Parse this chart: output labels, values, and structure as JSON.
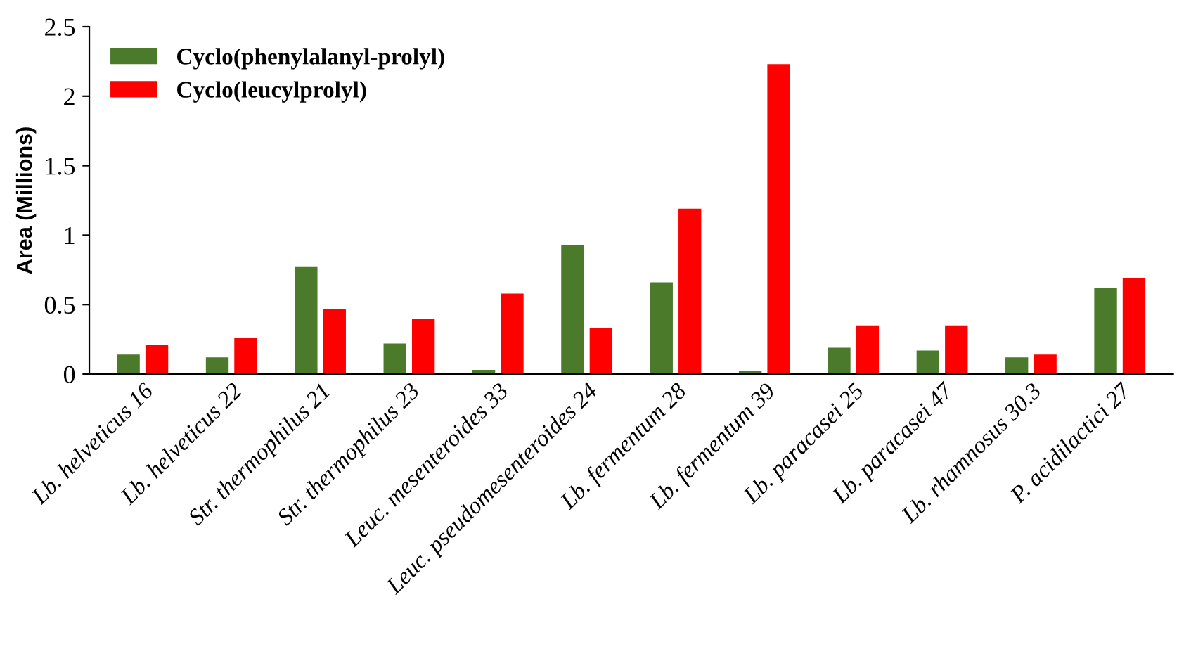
{
  "chart_data": {
    "type": "bar",
    "ylabel": "Area (Millions)",
    "categories": [
      "Lb. helveticus 16",
      "Lb. helveticus 22",
      "Str. thermophilus 21",
      "Str. thermophilus 23",
      "Leuc. mesenteroides 33",
      "Leuc. pseudomesenteroides 24",
      "Lb. fermentum 28",
      "Lb. fermentum 39",
      "Lb. paracasei 25",
      "Lb. paracasei 47",
      "Lb. rhamnosus 30.3",
      "P. acidilactici 27"
    ],
    "series": [
      {
        "name": "Cyclo(phenylalanyl-prolyl)",
        "color": "#4a7a2a",
        "values": [
          0.14,
          0.12,
          0.77,
          0.22,
          0.03,
          0.93,
          0.66,
          0.02,
          0.19,
          0.17,
          0.12,
          0.62
        ]
      },
      {
        "name": "Cyclo(leucylprolyl)",
        "color": "#ff0000",
        "values": [
          0.21,
          0.26,
          0.47,
          0.4,
          0.58,
          0.33,
          1.19,
          2.23,
          0.35,
          0.35,
          0.14,
          0.69
        ]
      }
    ],
    "ylim": [
      0,
      2.5
    ],
    "yticks": [
      0,
      0.5,
      1,
      1.5,
      2,
      2.5
    ],
    "grid": false,
    "legend": "top left"
  }
}
